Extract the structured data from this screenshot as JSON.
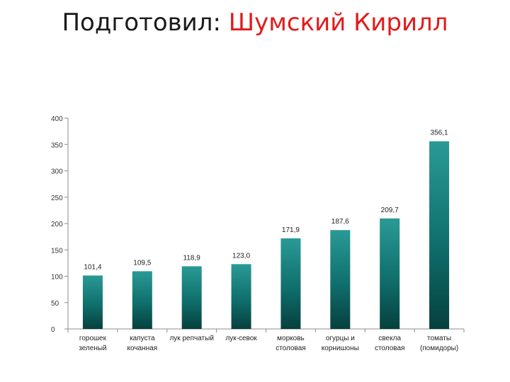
{
  "slide": {
    "title_prefix": "Подготовил:",
    "author": "Шумский Кирилл"
  },
  "colors": {
    "bar_top": "#2a9a96",
    "bar_mid": "#0f6f6c",
    "bar_dark": "#06403e",
    "axis": "#8c8c8c",
    "author": "#e31b1b"
  },
  "chart_data": {
    "type": "bar",
    "title": "",
    "xlabel": "",
    "ylabel": "",
    "ylim": [
      0,
      400
    ],
    "yticks": [
      0,
      50,
      100,
      150,
      200,
      250,
      300,
      350,
      400
    ],
    "grid": false,
    "categories": [
      [
        "горошек",
        "зеленый"
      ],
      [
        "капуста",
        "кочанная"
      ],
      [
        "лук репчатый"
      ],
      [
        "лук-севок"
      ],
      [
        "морковь",
        "столовая"
      ],
      [
        "огурцы и",
        "корнишоны"
      ],
      [
        "свекла",
        "столовая"
      ],
      [
        "томаты",
        "(помидоры)"
      ]
    ],
    "values": [
      101.4,
      109.5,
      118.9,
      123.0,
      171.9,
      187.6,
      209.7,
      356.1
    ],
    "data_labels": [
      "101,4",
      "109,5",
      "118,9",
      "123,0",
      "171,9",
      "187,6",
      "209,7",
      "356,1"
    ]
  }
}
